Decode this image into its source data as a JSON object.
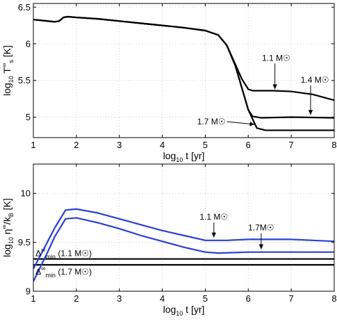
{
  "chart_data": [
    {
      "type": "line",
      "ylabel": "log10 T∞s [K]",
      "xlabel": "log10 t [yr]",
      "xlim": [
        1,
        8
      ],
      "ylim": [
        4.72,
        6.55
      ],
      "xticks": [
        "1",
        "2",
        "3",
        "4",
        "5",
        "6",
        "7",
        "8"
      ],
      "yticks": [
        "5",
        "5.5",
        "6",
        "6.5"
      ],
      "ytick_values": [
        5,
        5.5,
        6,
        6.5
      ],
      "grid": true,
      "line_color": "#000000",
      "series": [
        {
          "name": "1.1 M☉",
          "x": [
            1.0,
            1.5,
            1.6,
            1.7,
            1.8,
            2.0,
            2.5,
            3.0,
            3.5,
            4.0,
            4.5,
            5.0,
            5.3,
            5.5,
            5.7,
            5.85,
            6.0,
            6.1,
            6.3,
            6.6,
            7.0,
            7.5,
            8.0
          ],
          "y": [
            6.33,
            6.3,
            6.31,
            6.36,
            6.37,
            6.36,
            6.34,
            6.31,
            6.28,
            6.25,
            6.22,
            6.18,
            6.12,
            5.98,
            5.72,
            5.52,
            5.38,
            5.36,
            5.36,
            5.36,
            5.35,
            5.31,
            5.23
          ]
        },
        {
          "name": "1.4 M☉",
          "x": [
            1.0,
            1.5,
            1.6,
            1.7,
            1.8,
            2.0,
            2.5,
            3.0,
            3.5,
            4.0,
            4.5,
            5.0,
            5.3,
            5.5,
            5.7,
            5.85,
            6.0,
            6.1,
            6.3,
            7.0,
            8.0
          ],
          "y": [
            6.33,
            6.3,
            6.31,
            6.36,
            6.37,
            6.36,
            6.34,
            6.31,
            6.28,
            6.25,
            6.22,
            6.18,
            6.12,
            5.98,
            5.7,
            5.4,
            5.1,
            5.01,
            4.99,
            5.0,
            4.99
          ]
        },
        {
          "name": "1.7 M☉",
          "x": [
            1.0,
            1.5,
            1.6,
            1.7,
            1.8,
            2.0,
            2.5,
            3.0,
            3.5,
            4.0,
            4.5,
            5.0,
            5.3,
            5.5,
            5.7,
            5.85,
            6.0,
            6.2,
            6.4,
            7.0,
            8.0
          ],
          "y": [
            6.33,
            6.3,
            6.31,
            6.36,
            6.37,
            6.36,
            6.34,
            6.31,
            6.28,
            6.25,
            6.22,
            6.18,
            6.12,
            5.98,
            5.7,
            5.4,
            5.1,
            4.85,
            4.82,
            4.82,
            4.82
          ]
        }
      ],
      "annotations": [
        {
          "text": "1.1 M☉",
          "x": 6.65,
          "y": 5.77,
          "arrow_to": [
            6.62,
            5.38
          ]
        },
        {
          "text": "1.4 M☉",
          "x": 7.55,
          "y": 5.47,
          "arrow_to": [
            7.45,
            5.03
          ]
        },
        {
          "text": "1.7 M☉",
          "x": 5.47,
          "y": 4.9,
          "arrow_to": [
            6.15,
            4.9
          ]
        }
      ]
    },
    {
      "type": "line",
      "ylabel": "log10 η∞/kB [K]",
      "xlabel": "log10 t [yr]",
      "xlim": [
        1,
        8
      ],
      "ylim": [
        9.0,
        10.3
      ],
      "xticks": [
        "1",
        "2",
        "3",
        "4",
        "5",
        "6",
        "7",
        "8"
      ],
      "yticks": [
        "9",
        "9.5",
        "10"
      ],
      "ytick_values": [
        9,
        9.5,
        10
      ],
      "grid": true,
      "line_color": "#2b3ed6",
      "series": [
        {
          "name": "1.1 M☉",
          "x": [
            1.0,
            1.3,
            1.5,
            1.75,
            2.0,
            2.5,
            3.0,
            3.5,
            4.0,
            4.5,
            5.0,
            5.5,
            6.0,
            6.5,
            7.0,
            7.5,
            8.0
          ],
          "y": [
            9.23,
            9.48,
            9.65,
            9.83,
            9.84,
            9.8,
            9.74,
            9.68,
            9.62,
            9.57,
            9.52,
            9.52,
            9.53,
            9.53,
            9.53,
            9.52,
            9.51
          ]
        },
        {
          "name": "1.7 M☉",
          "x": [
            1.0,
            1.3,
            1.5,
            1.75,
            2.0,
            2.5,
            3.0,
            3.5,
            4.0,
            4.5,
            5.0,
            5.3,
            6.0,
            6.5,
            7.0,
            7.5,
            8.0
          ],
          "y": [
            9.1,
            9.37,
            9.56,
            9.74,
            9.75,
            9.7,
            9.64,
            9.57,
            9.51,
            9.45,
            9.4,
            9.39,
            9.4,
            9.4,
            9.4,
            9.4,
            9.4
          ]
        }
      ],
      "hlines": [
        {
          "name": "Δ∞min (1.1 M☉)",
          "y": 9.33
        },
        {
          "name": "Δ∞min (1.7 M☉)",
          "y": 9.27
        }
      ],
      "annotations": [
        {
          "text": "1.1 M☉",
          "x": 5.2,
          "y": 9.73,
          "arrow_to": [
            5.2,
            9.55
          ]
        },
        {
          "text": "1.7M☉",
          "x": 6.3,
          "y": 9.62,
          "arrow_to": [
            6.3,
            9.43
          ]
        },
        {
          "text": "Δ∞min (1.1 M☉)",
          "x": 1.05,
          "y": 9.36
        },
        {
          "text": "Δ∞min (1.7 M☉)",
          "x": 1.05,
          "y": 9.17
        }
      ]
    }
  ]
}
